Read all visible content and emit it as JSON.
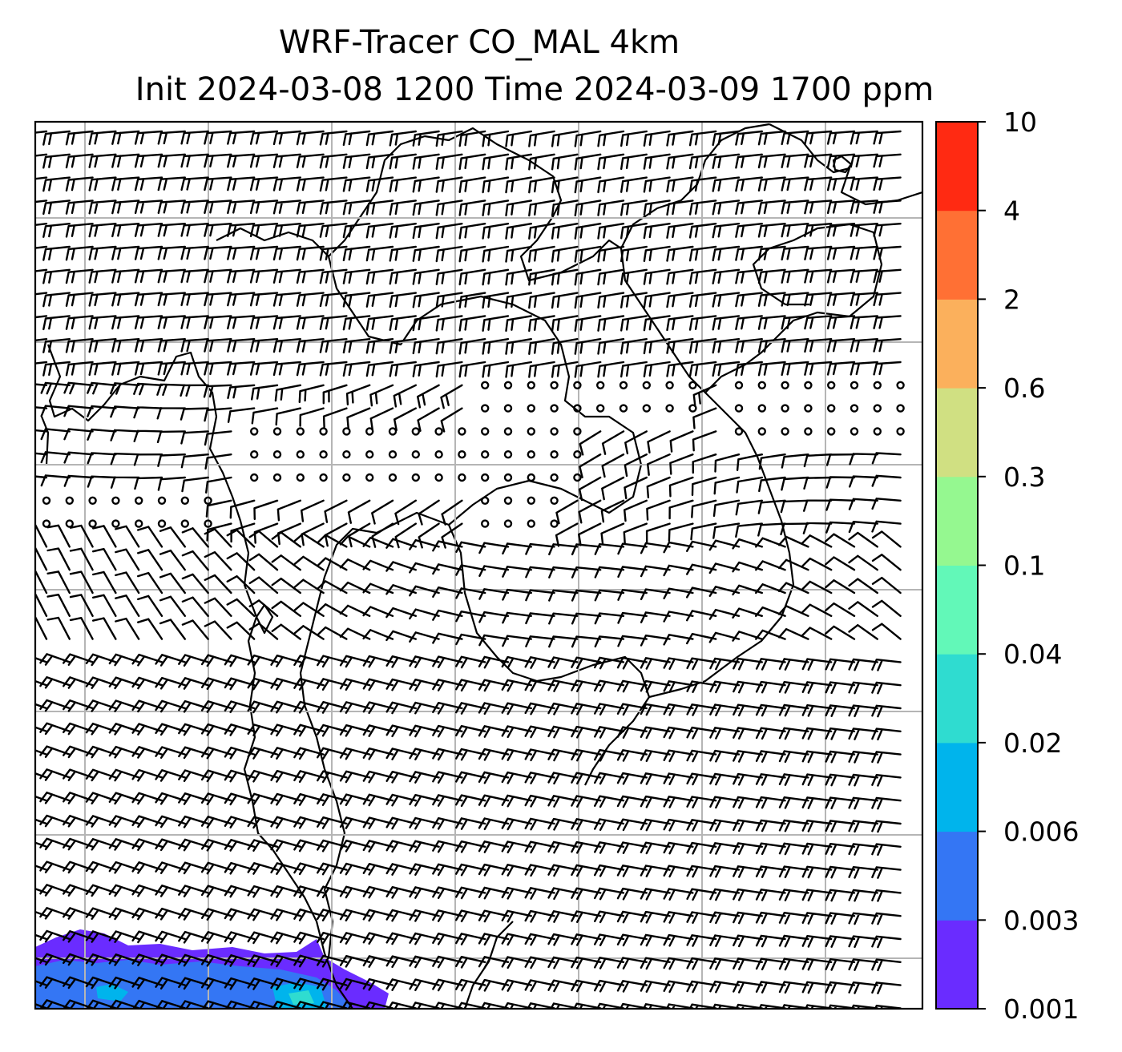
{
  "title": {
    "line1": "WRF-Tracer CO_MAL 4km",
    "line2": "Init 2024-03-08 1200 Time 2024-03-09 1700 ppm"
  },
  "colorbar": {
    "levels": [
      "0.001",
      "0.003",
      "0.006",
      "0.02",
      "0.04",
      "0.1",
      "0.3",
      "0.6",
      "2",
      "4",
      "10"
    ],
    "colors": [
      "#6a2cff",
      "#3476f4",
      "#00b4ec",
      "#2fdcd0",
      "#62f8b8",
      "#95f890",
      "#d0e082",
      "#fbb05c",
      "#ff7034",
      "#ff2a12"
    ]
  },
  "map": {
    "gridline_color": "#b5b5b5",
    "barb_color": "#000000",
    "coastline_color": "#000000"
  }
}
